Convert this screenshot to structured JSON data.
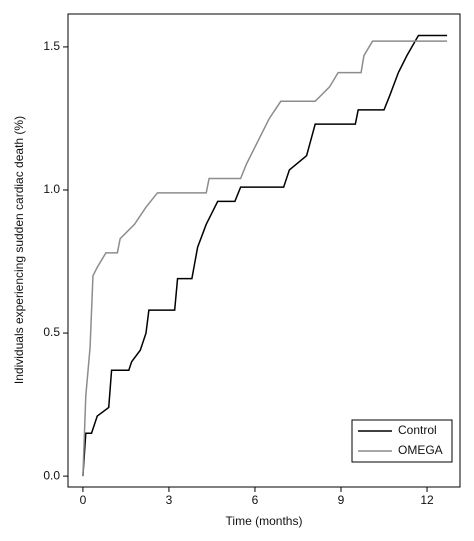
{
  "chart_data": {
    "type": "line",
    "xlabel": "Time (months)",
    "ylabel": "Individuals experiencing sudden cardiac death (%)",
    "xlim": [
      -0.52,
      13.15
    ],
    "xticks": [
      0,
      3,
      6,
      9,
      12
    ],
    "ylim": [
      -0.038,
      1.615
    ],
    "yticks": [
      {
        "value": 0,
        "label": "0.0"
      },
      {
        "value": 0.5,
        "label": "0.5"
      },
      {
        "value": 1,
        "label": "1.0"
      },
      {
        "value": 1.5,
        "label": "1.5"
      }
    ],
    "legend": "lower right",
    "series": [
      {
        "name": "Control",
        "color": "#000000",
        "x": [
          0,
          0.1,
          0.3,
          0.5,
          0.9,
          1.0,
          1.6,
          1.7,
          2.0,
          2.2,
          2.3,
          3.2,
          3.3,
          3.8,
          4.0,
          4.3,
          4.7,
          5.3,
          5.5,
          7.0,
          7.2,
          7.8,
          8.1,
          9.5,
          9.6,
          10.5,
          10.7,
          11.0,
          11.3,
          11.7,
          12.7
        ],
        "values": [
          0,
          0.15,
          0.15,
          0.21,
          0.24,
          0.37,
          0.37,
          0.4,
          0.44,
          0.5,
          0.58,
          0.58,
          0.69,
          0.69,
          0.8,
          0.88,
          0.96,
          0.96,
          1.01,
          1.01,
          1.07,
          1.12,
          1.23,
          1.23,
          1.28,
          1.28,
          1.33,
          1.41,
          1.47,
          1.54,
          1.54
        ]
      },
      {
        "name": "OMEGA",
        "color": "#8c8c8c",
        "x": [
          0,
          0.1,
          0.25,
          0.35,
          0.5,
          0.8,
          1.2,
          1.3,
          1.8,
          2.2,
          2.6,
          4.3,
          4.4,
          5.5,
          5.7,
          6.0,
          6.5,
          6.9,
          8.1,
          8.6,
          8.9,
          9.7,
          9.8,
          10.1,
          12.7
        ],
        "values": [
          0,
          0.28,
          0.45,
          0.7,
          0.73,
          0.78,
          0.78,
          0.83,
          0.88,
          0.94,
          0.99,
          0.99,
          1.04,
          1.04,
          1.09,
          1.15,
          1.25,
          1.31,
          1.31,
          1.36,
          1.41,
          1.41,
          1.47,
          1.52,
          1.52
        ]
      }
    ]
  }
}
